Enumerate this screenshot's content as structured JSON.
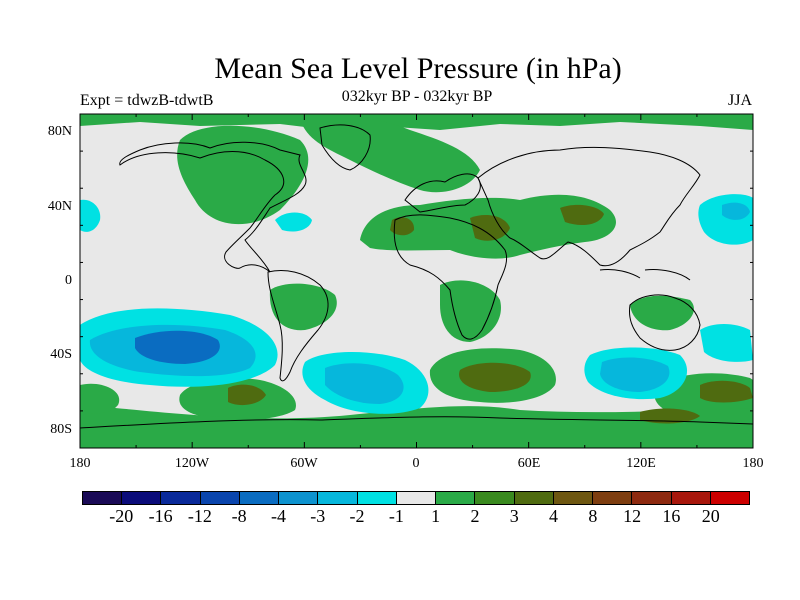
{
  "title": "Mean Sea Level Pressure (in hPa)",
  "left_subtitle": "Expt = tdwzB-tdwtB",
  "center_subtitle": "032kyr BP - 032kyr BP",
  "right_subtitle": "JJA",
  "map": {
    "lat_labels": [
      "80N",
      "40N",
      "0",
      "40S",
      "80S"
    ],
    "lon_labels": [
      "180",
      "120W",
      "60W",
      "0",
      "60E",
      "120E",
      "180"
    ]
  },
  "colorbar": {
    "colors": [
      "#1a0a56",
      "#0b0c7a",
      "#0a2a9a",
      "#0a45ad",
      "#0a6cc1",
      "#0d93cf",
      "#06b7dc",
      "#00e1e3",
      "#e8e8e8",
      "#2aaa47",
      "#3a8a1f",
      "#4f6b10",
      "#6e5711",
      "#7e3e10",
      "#8e2a10",
      "#a8170c",
      "#cd0000"
    ],
    "labels": [
      "-20",
      "-16",
      "-12",
      "-8",
      "-4",
      "-3",
      "-2",
      "-1",
      "1",
      "2",
      "3",
      "4",
      "8",
      "12",
      "16",
      "20"
    ]
  }
}
